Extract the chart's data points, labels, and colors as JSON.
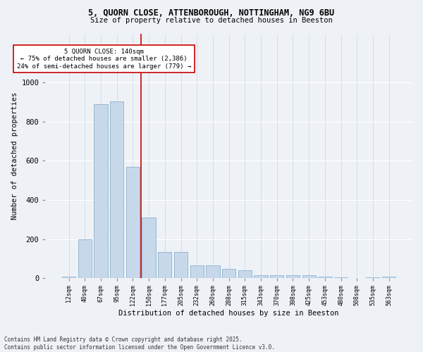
{
  "title_line1": "5, QUORN CLOSE, ATTENBOROUGH, NOTTINGHAM, NG9 6BU",
  "title_line2": "Size of property relative to detached houses in Beeston",
  "xlabel": "Distribution of detached houses by size in Beeston",
  "ylabel": "Number of detached properties",
  "bar_color": "#c8d8eb",
  "bar_edge_color": "#8ab0cc",
  "background_color": "#eef2f7",
  "categories": [
    "12sqm",
    "40sqm",
    "67sqm",
    "95sqm",
    "122sqm",
    "150sqm",
    "177sqm",
    "205sqm",
    "232sqm",
    "260sqm",
    "288sqm",
    "315sqm",
    "343sqm",
    "370sqm",
    "398sqm",
    "425sqm",
    "453sqm",
    "480sqm",
    "508sqm",
    "535sqm",
    "563sqm"
  ],
  "values": [
    10,
    200,
    890,
    905,
    570,
    310,
    135,
    135,
    65,
    65,
    47,
    40,
    15,
    15,
    15,
    15,
    10,
    4,
    2,
    5,
    10
  ],
  "ylim": [
    0,
    1250
  ],
  "yticks": [
    0,
    200,
    400,
    600,
    800,
    1000
  ],
  "vline_x_idx": 4.5,
  "vline_color": "#cc0000",
  "annotation_text": "5 QUORN CLOSE: 140sqm\n← 75% of detached houses are smaller (2,386)\n24% of semi-detached houses are larger (779) →",
  "annotation_box_color": "#ffffff",
  "annotation_box_edge": "#cc0000",
  "footnote": "Contains HM Land Registry data © Crown copyright and database right 2025.\nContains public sector information licensed under the Open Government Licence v3.0."
}
